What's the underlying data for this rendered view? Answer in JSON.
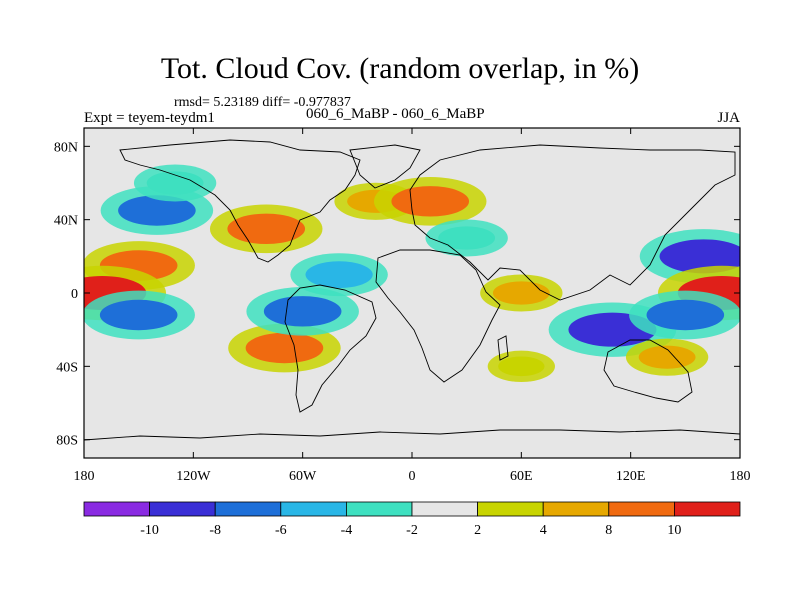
{
  "title": "Tot. Cloud Cov. (random overlap, in %)",
  "stats": "rmsd= 5.23189 diff= -0.977837",
  "experiment": "Expt = teyem-teydm1",
  "difference": "060_6_MaBP - 060_6_MaBP",
  "season": "JJA",
  "chart_data": {
    "type": "heatmap",
    "projection": "cylindrical equidistant",
    "x_range": [
      -180,
      180
    ],
    "y_range": [
      -90,
      90
    ],
    "lon_ticks": [
      {
        "value": -180,
        "label": "180"
      },
      {
        "value": -120,
        "label": "120W"
      },
      {
        "value": -60,
        "label": "60W"
      },
      {
        "value": 0,
        "label": "0"
      },
      {
        "value": 60,
        "label": "60E"
      },
      {
        "value": 120,
        "label": "120E"
      },
      {
        "value": 180,
        "label": "180"
      }
    ],
    "lat_ticks": [
      {
        "value": 80,
        "label": "80N"
      },
      {
        "value": 40,
        "label": "40N"
      },
      {
        "value": 0,
        "label": "0"
      },
      {
        "value": -40,
        "label": "40S"
      },
      {
        "value": -80,
        "label": "80S"
      }
    ],
    "colorbar": {
      "bins": [
        {
          "range": "< -10",
          "color": "#8a2be2"
        },
        {
          "range": "-10 to -8",
          "color": "#3a2fd6"
        },
        {
          "range": "-8 to -6",
          "color": "#1e6fd8"
        },
        {
          "range": "-6 to -4",
          "color": "#29b6e6"
        },
        {
          "range": "-4 to -2",
          "color": "#3ee0c0"
        },
        {
          "range": "-2 to 2",
          "color": "#e6e6e6"
        },
        {
          "range": "2 to 4",
          "color": "#c8d400"
        },
        {
          "range": "4 to 8",
          "color": "#e6a800"
        },
        {
          "range": "8 to 10",
          "color": "#f06a10"
        },
        {
          "range": "> 10",
          "color": "#e0201a"
        }
      ],
      "labels": [
        "-10",
        "-8",
        "-6",
        "-4",
        "-2",
        "2",
        "4",
        "8",
        "10"
      ]
    },
    "fields": [
      {
        "lon": -150,
        "lat": 15,
        "value": 8
      },
      {
        "lon": -170,
        "lat": 0,
        "value": 10
      },
      {
        "lon": -150,
        "lat": -12,
        "value": -8
      },
      {
        "lon": -140,
        "lat": 45,
        "value": -8
      },
      {
        "lon": -130,
        "lat": 60,
        "value": -4
      },
      {
        "lon": -80,
        "lat": 35,
        "value": 8
      },
      {
        "lon": -70,
        "lat": -30,
        "value": 8
      },
      {
        "lon": -60,
        "lat": -10,
        "value": -8
      },
      {
        "lon": -40,
        "lat": 10,
        "value": -6
      },
      {
        "lon": -20,
        "lat": 50,
        "value": 4
      },
      {
        "lon": 10,
        "lat": 50,
        "value": 8
      },
      {
        "lon": 30,
        "lat": 30,
        "value": -4
      },
      {
        "lon": 60,
        "lat": 0,
        "value": 4
      },
      {
        "lon": 110,
        "lat": -20,
        "value": -10
      },
      {
        "lon": 160,
        "lat": 20,
        "value": -10
      },
      {
        "lon": 170,
        "lat": 0,
        "value": 10
      },
      {
        "lon": 150,
        "lat": -12,
        "value": -8
      },
      {
        "lon": 60,
        "lat": -40,
        "value": 2
      },
      {
        "lon": 140,
        "lat": -35,
        "value": 4
      }
    ]
  }
}
